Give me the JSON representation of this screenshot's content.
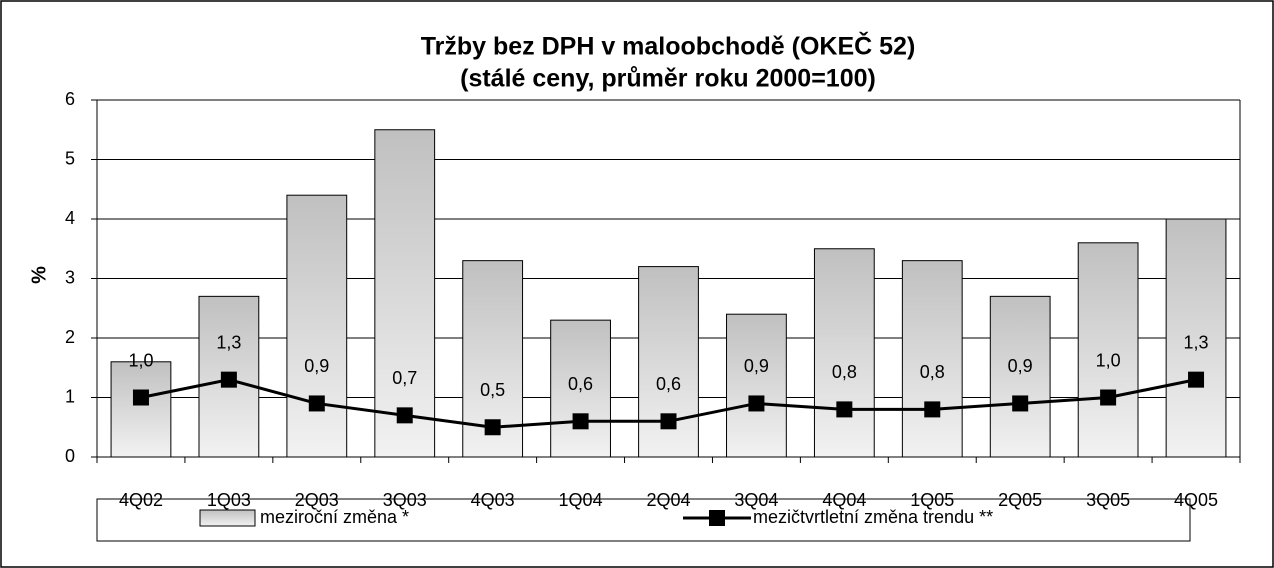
{
  "chart_data": {
    "type": "bar",
    "title": "Tržby bez DPH v maloobchodě (OKEČ 52)",
    "subtitle": "(stálé ceny, průměr roku 2000=100)",
    "y_label": "%",
    "categories": [
      "4Q02",
      "1Q03",
      "2Q03",
      "3Q03",
      "4Q03",
      "1Q04",
      "2Q04",
      "3Q04",
      "4Q04",
      "1Q05",
      "2Q05",
      "3Q05",
      "4Q05"
    ],
    "series": [
      {
        "name": "meziroční změna *",
        "type": "bar",
        "color": "#c0c0c0",
        "values": [
          1.6,
          2.7,
          4.4,
          5.5,
          3.3,
          2.3,
          3.2,
          2.4,
          3.5,
          3.3,
          2.7,
          3.6,
          4.0
        ]
      },
      {
        "name": "mezičtvrtletní změna trendu **",
        "type": "line",
        "color": "#000000",
        "values": [
          1.0,
          1.3,
          0.9,
          0.7,
          0.5,
          0.6,
          0.6,
          0.9,
          0.8,
          0.8,
          0.9,
          1.0,
          1.3
        ],
        "value_labels": [
          "1,0",
          "1,3",
          "0,9",
          "0,7",
          "0,5",
          "0,6",
          "0,6",
          "0,9",
          "0,8",
          "0,8",
          "0,9",
          "1,0",
          "1,3"
        ]
      }
    ],
    "ylim": [
      0,
      6
    ],
    "yticks": [
      0,
      1,
      2,
      3,
      4,
      5,
      6
    ],
    "grid": true,
    "legend": "bottom"
  }
}
